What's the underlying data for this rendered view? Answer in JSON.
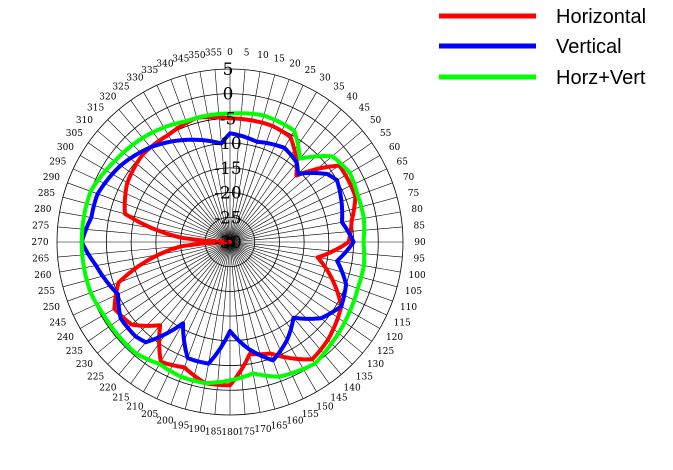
{
  "chart_data": {
    "type": "polar-line",
    "title": "",
    "angle_unit": "deg",
    "angle_step": 5,
    "angle_ticks": [
      0,
      5,
      10,
      15,
      20,
      25,
      30,
      35,
      40,
      45,
      50,
      55,
      60,
      65,
      70,
      75,
      80,
      85,
      90,
      95,
      100,
      105,
      110,
      115,
      120,
      125,
      130,
      135,
      140,
      145,
      150,
      155,
      160,
      165,
      170,
      175,
      180,
      185,
      190,
      195,
      200,
      205,
      210,
      215,
      220,
      225,
      230,
      235,
      240,
      245,
      250,
      255,
      260,
      265,
      270,
      275,
      280,
      285,
      290,
      295,
      300,
      305,
      310,
      315,
      320,
      325,
      330,
      335,
      340,
      345,
      350,
      355
    ],
    "rlim": [
      -30,
      5
    ],
    "radial_ticks": [
      5,
      0,
      -5,
      -10,
      -15,
      -20,
      -25,
      -30
    ],
    "grid": true,
    "legend_position": "top-right",
    "series": [
      {
        "name": "Horizontal",
        "color": "#ff0000",
        "angles": [
          0,
          20,
          30,
          40,
          45,
          55,
          70,
          80,
          90,
          100,
          110,
          120,
          135,
          145,
          160,
          170,
          180,
          190,
          200,
          210,
          220,
          225,
          230,
          240,
          250,
          265,
          270,
          275,
          285,
          300,
          315,
          330,
          345
        ],
        "values": [
          -5,
          -5,
          -5.5,
          -9,
          -11,
          -3,
          -3,
          -5,
          -6,
          -12,
          -8,
          -4,
          -2,
          -1,
          -6,
          -7,
          -1,
          -1,
          -3,
          -2,
          -8,
          -6,
          -4,
          -3,
          -6,
          -20,
          -30,
          -20,
          -8,
          -6,
          -5,
          -5,
          -4
        ]
      },
      {
        "name": "Vertical",
        "color": "#0000ff",
        "angles": [
          0,
          15,
          30,
          40,
          45,
          55,
          60,
          70,
          80,
          90,
          100,
          110,
          120,
          130,
          140,
          150,
          160,
          170,
          180,
          190,
          200,
          210,
          220,
          225,
          235,
          245,
          260,
          270,
          280,
          290,
          305,
          320,
          340,
          355
        ],
        "values": [
          -8,
          -9,
          -8,
          -9,
          -10.5,
          -6,
          -5,
          -6,
          -7,
          -5,
          -8,
          -5,
          -4,
          -6,
          -10,
          -7,
          -4.5,
          -8,
          -12,
          -5,
          -5,
          -11,
          -3.5,
          -3,
          -3,
          -5,
          -2.5,
          0,
          -1.5,
          -1.5,
          -3,
          -5,
          -8,
          -10
        ]
      },
      {
        "name": "Horz+Vert",
        "color": "#00ff00",
        "angles": [
          0,
          15,
          30,
          40,
          50,
          60,
          70,
          80,
          90,
          100,
          110,
          120,
          135,
          145,
          160,
          170,
          180,
          190,
          200,
          210,
          220,
          230,
          240,
          250,
          260,
          270,
          280,
          290,
          305,
          320,
          340,
          355
        ],
        "values": [
          -4,
          -3.5,
          -4,
          -8,
          -3,
          -2,
          -2.5,
          -2.5,
          -3,
          -2.5,
          -2.5,
          -2,
          -1,
          0,
          -1,
          -3,
          -2,
          -1,
          -1,
          -1.5,
          -0.5,
          -0.5,
          -0.5,
          0,
          0,
          0,
          0,
          0,
          -1.5,
          -2.5,
          -4,
          -4
        ]
      }
    ]
  },
  "legend": {
    "items": [
      {
        "label": "Horizontal",
        "color": "#ff0000"
      },
      {
        "label": "Vertical",
        "color": "#0000ff"
      },
      {
        "label": "Horz+Vert",
        "color": "#00ff00"
      }
    ]
  }
}
